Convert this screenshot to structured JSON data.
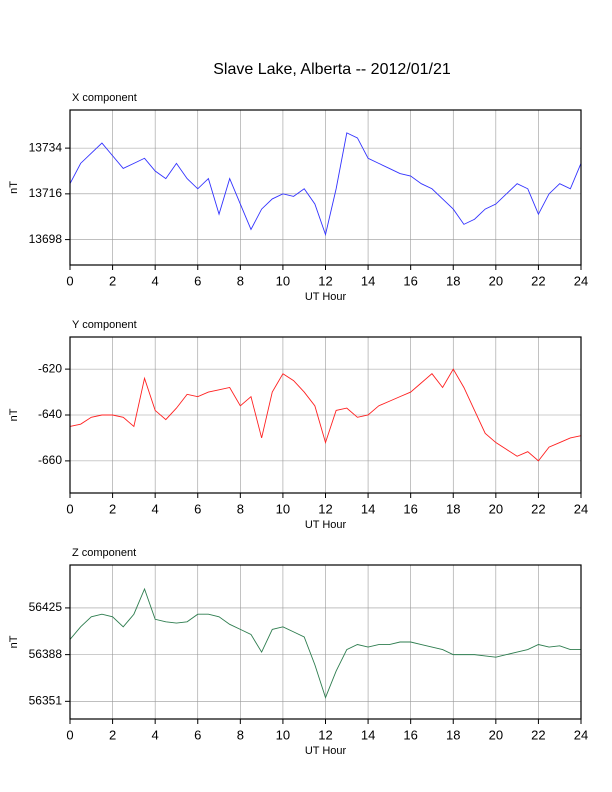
{
  "title": "Slave Lake, Alberta -- 2012/01/21",
  "chart_data": [
    {
      "type": "line",
      "title": "X component",
      "xlabel": "UT Hour",
      "ylabel": "nT",
      "x": [
        0,
        0.5,
        1,
        1.5,
        2,
        2.5,
        3,
        3.5,
        4,
        4.5,
        5,
        5.5,
        6,
        6.5,
        7,
        7.5,
        8,
        8.5,
        9,
        9.5,
        10,
        10.5,
        11,
        11.5,
        12,
        12.5,
        13,
        13.5,
        14,
        14.5,
        15,
        15.5,
        16,
        16.5,
        17,
        17.5,
        18,
        18.5,
        19,
        19.5,
        20,
        20.5,
        21,
        21.5,
        22,
        22.5,
        23,
        23.5,
        24
      ],
      "series": [
        {
          "name": "X component",
          "color": "#3333ff",
          "values": [
            13720,
            13728,
            13732,
            13736,
            13731,
            13726,
            13728,
            13730,
            13725,
            13722,
            13728,
            13722,
            13718,
            13722,
            13708,
            13722,
            13712,
            13702,
            13710,
            13714,
            13716,
            13715,
            13718,
            13712,
            13700,
            13718,
            13740,
            13738,
            13730,
            13728,
            13726,
            13724,
            13723,
            13720,
            13718,
            13714,
            13710,
            13704,
            13706,
            13710,
            13712,
            13716,
            13720,
            13718,
            13708,
            13716,
            13720,
            13718,
            13728
          ]
        }
      ],
      "xlim": [
        0,
        24
      ],
      "xticks": [
        0,
        2,
        4,
        6,
        8,
        10,
        12,
        14,
        16,
        18,
        20,
        22,
        24
      ],
      "ylim": [
        13688,
        13749
      ],
      "yticks": [
        13698,
        13716,
        13734
      ],
      "grid": true
    },
    {
      "type": "line",
      "title": "Y component",
      "xlabel": "UT Hour",
      "ylabel": "nT",
      "x": [
        0,
        0.5,
        1,
        1.5,
        2,
        2.5,
        3,
        3.5,
        4,
        4.5,
        5,
        5.5,
        6,
        6.5,
        7,
        7.5,
        8,
        8.5,
        9,
        9.5,
        10,
        10.5,
        11,
        11.5,
        12,
        12.5,
        13,
        13.5,
        14,
        14.5,
        15,
        15.5,
        16,
        16.5,
        17,
        17.5,
        18,
        18.5,
        19,
        19.5,
        20,
        20.5,
        21,
        21.5,
        22,
        22.5,
        23,
        23.5,
        24
      ],
      "series": [
        {
          "name": "Y component",
          "color": "#ff2020",
          "values": [
            -645,
            -644,
            -641,
            -640,
            -640,
            -641,
            -645,
            -624,
            -638,
            -642,
            -637,
            -631,
            -632,
            -630,
            -629,
            -628,
            -636,
            -632,
            -650,
            -630,
            -622,
            -625,
            -630,
            -636,
            -652,
            -638,
            -637,
            -641,
            -640,
            -636,
            -634,
            -632,
            -630,
            -626,
            -622,
            -628,
            -620,
            -628,
            -638,
            -648,
            -652,
            -655,
            -658,
            -656,
            -660,
            -654,
            -652,
            -650,
            -649
          ]
        }
      ],
      "xlim": [
        0,
        24
      ],
      "xticks": [
        0,
        2,
        4,
        6,
        8,
        10,
        12,
        14,
        16,
        18,
        20,
        22,
        24
      ],
      "ylim": [
        -674,
        -606
      ],
      "yticks": [
        -660,
        -640,
        -620
      ],
      "grid": true
    },
    {
      "type": "line",
      "title": "Z component",
      "xlabel": "UT Hour",
      "ylabel": "nT",
      "x": [
        0,
        0.5,
        1,
        1.5,
        2,
        2.5,
        3,
        3.5,
        4,
        4.5,
        5,
        5.5,
        6,
        6.5,
        7,
        7.5,
        8,
        8.5,
        9,
        9.5,
        10,
        10.5,
        11,
        11.5,
        12,
        12.5,
        13,
        13.5,
        14,
        14.5,
        15,
        15.5,
        16,
        16.5,
        17,
        17.5,
        18,
        18.5,
        19,
        19.5,
        20,
        20.5,
        21,
        21.5,
        22,
        22.5,
        23,
        23.5,
        24
      ],
      "series": [
        {
          "name": "Z component",
          "color": "#2e7d4f",
          "values": [
            56400,
            56410,
            56418,
            56420,
            56418,
            56410,
            56420,
            56440,
            56416,
            56414,
            56413,
            56414,
            56420,
            56420,
            56418,
            56412,
            56408,
            56404,
            56390,
            56408,
            56410,
            56406,
            56402,
            56380,
            56354,
            56375,
            56392,
            56396,
            56394,
            56396,
            56396,
            56398,
            56398,
            56396,
            56394,
            56392,
            56388,
            56388,
            56388,
            56387,
            56386,
            56388,
            56390,
            56392,
            56396,
            56394,
            56395,
            56392,
            56392
          ]
        }
      ],
      "xlim": [
        0,
        24
      ],
      "xticks": [
        0,
        2,
        4,
        6,
        8,
        10,
        12,
        14,
        16,
        18,
        20,
        22,
        24
      ],
      "ylim": [
        56337,
        56459
      ],
      "yticks": [
        56351,
        56388,
        56425
      ],
      "grid": true
    }
  ]
}
